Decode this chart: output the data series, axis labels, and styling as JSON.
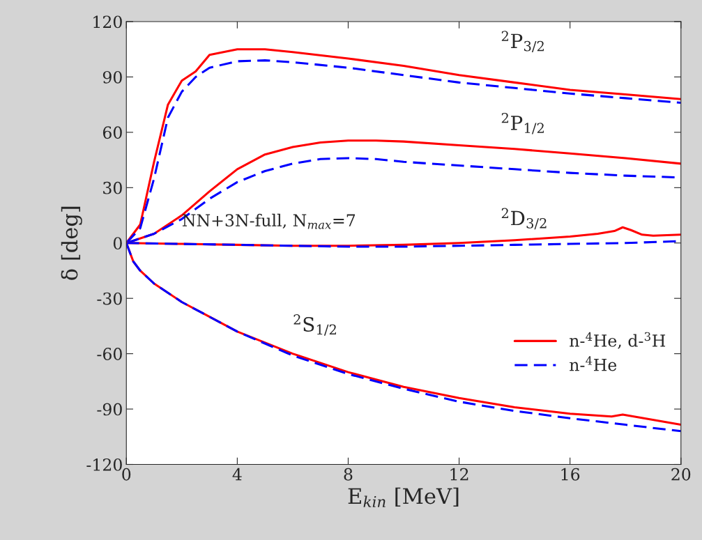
{
  "chart_data": {
    "type": "line",
    "xlabel": "E$_{kin}$ [MeV]",
    "ylabel": "δ [deg]",
    "xlim": [
      0,
      20
    ],
    "ylim": [
      -120,
      120
    ],
    "xticks": [
      0,
      4,
      8,
      12,
      16,
      20
    ],
    "yticks": [
      -120,
      -90,
      -60,
      -30,
      0,
      30,
      60,
      90,
      120
    ],
    "grid": false,
    "legend": "bottom right",
    "marker": "none",
    "series": [
      {
        "name": "n-$^{4}$He, d-$^{3}$H",
        "color": "#ff0000",
        "line_style": "solid",
        "x": [
          0,
          0.5,
          1,
          1.5,
          2,
          2.5,
          3,
          4,
          5,
          6,
          8,
          10,
          12,
          14,
          16,
          18,
          20
        ],
        "values": [
          0,
          10,
          44,
          75,
          88,
          93,
          102,
          105,
          105,
          103.5,
          100,
          96,
          91,
          87,
          83,
          80.5,
          78
        ]
      },
      {
        "name": "n-$^{4}$He",
        "color": "#0000ff",
        "line_style": "dashed",
        "x": [
          0,
          0.5,
          1,
          1.5,
          2,
          2.5,
          3,
          4,
          5,
          6,
          8,
          10,
          12,
          14,
          16,
          18,
          20
        ],
        "values": [
          0,
          8,
          35,
          68,
          82,
          90,
          95,
          98.5,
          99,
          98,
          95,
          91,
          87,
          84,
          81,
          78.5,
          76
        ]
      },
      {
        "color": "#ff0000",
        "line_style": "solid",
        "x": [
          0,
          1,
          2,
          3,
          4,
          5,
          6,
          7,
          8,
          9,
          10,
          12,
          14,
          16,
          18,
          20
        ],
        "values": [
          0,
          5,
          15,
          28,
          40,
          48,
          52,
          54.5,
          55.5,
          55.5,
          55,
          53,
          51,
          48.5,
          46,
          43
        ]
      },
      {
        "color": "#0000ff",
        "line_style": "dashed",
        "x": [
          0,
          1,
          2,
          3,
          4,
          5,
          6,
          7,
          8,
          9,
          10,
          12,
          14,
          16,
          18,
          20
        ],
        "values": [
          0,
          5,
          13,
          24,
          33,
          39,
          43,
          45.5,
          46,
          45.5,
          44,
          42,
          40,
          38,
          36.5,
          35.5
        ]
      },
      {
        "color": "#ff0000",
        "line_style": "solid",
        "x": [
          0,
          2,
          4,
          6,
          8,
          10,
          12,
          14,
          16,
          17,
          17.6,
          17.9,
          18.2,
          18.6,
          19,
          20
        ],
        "values": [
          0,
          -0.5,
          -1,
          -1.5,
          -1.5,
          -1,
          0,
          1.5,
          3.5,
          5,
          6.5,
          8.5,
          7,
          4.5,
          4,
          4.5
        ]
      },
      {
        "color": "#0000ff",
        "line_style": "dashed",
        "x": [
          0,
          4,
          8,
          10,
          12,
          14,
          16,
          18,
          20
        ],
        "values": [
          0,
          -1,
          -2,
          -2,
          -1.5,
          -1,
          -0.5,
          0,
          1
        ]
      },
      {
        "color": "#ff0000",
        "line_style": "solid",
        "x": [
          0,
          0.25,
          0.5,
          1,
          2,
          3,
          4,
          6,
          8,
          10,
          12,
          14,
          16,
          17.5,
          17.9,
          18.3,
          20
        ],
        "values": [
          0,
          -10,
          -15,
          -22,
          -32,
          -40,
          -48,
          -60,
          -70,
          -78,
          -84,
          -89,
          -92.5,
          -94,
          -93,
          -94,
          -98.5
        ]
      },
      {
        "color": "#0000ff",
        "line_style": "dashed",
        "x": [
          0,
          0.25,
          0.5,
          1,
          2,
          3,
          4,
          6,
          8,
          10,
          12,
          14,
          16,
          18,
          20
        ],
        "values": [
          0,
          -10,
          -15,
          -22,
          -32,
          -40,
          -48,
          -61,
          -71,
          -79,
          -86,
          -91,
          -95,
          -98.5,
          -102
        ]
      }
    ],
    "annotations": [
      "$^{2}$P$_{3/2}$",
      "$^{2}$P$_{1/2}$",
      "$^{2}$D$_{3/2}$",
      "$^{2}$S$_{1/2}$",
      "NN+3N-full, N$_{max}$=7"
    ]
  }
}
